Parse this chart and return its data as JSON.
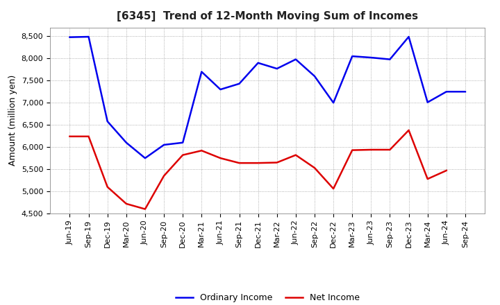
{
  "title": "[6345]  Trend of 12-Month Moving Sum of Incomes",
  "ylabel": "Amount (million yen)",
  "xlabels": [
    "Jun-19",
    "Sep-19",
    "Dec-19",
    "Mar-20",
    "Jun-20",
    "Sep-20",
    "Dec-20",
    "Mar-21",
    "Jun-21",
    "Sep-21",
    "Dec-21",
    "Mar-22",
    "Jun-22",
    "Sep-22",
    "Dec-22",
    "Mar-23",
    "Jun-23",
    "Sep-23",
    "Dec-23",
    "Mar-24",
    "Jun-24",
    "Sep-24"
  ],
  "ordinary_income": [
    8480,
    8490,
    6580,
    6100,
    5750,
    6050,
    6100,
    7700,
    7300,
    7430,
    7900,
    7770,
    7980,
    7600,
    7000,
    8050,
    8020,
    7980,
    8490,
    7010,
    7250,
    7250
  ],
  "net_income": [
    6240,
    6240,
    5100,
    4720,
    4600,
    5350,
    5820,
    5920,
    5750,
    5640,
    5640,
    5650,
    5820,
    5530,
    5060,
    5930,
    5940,
    5940,
    6380,
    5280,
    5470,
    null
  ],
  "ordinary_color": "#0000ee",
  "net_color": "#dd0000",
  "background_color": "#ffffff",
  "grid_color": "#999999",
  "ylim": [
    4500,
    8700
  ],
  "yticks": [
    4500,
    5000,
    5500,
    6000,
    6500,
    7000,
    7500,
    8000,
    8500
  ],
  "title_fontsize": 11,
  "axis_label_fontsize": 9,
  "tick_fontsize": 8,
  "legend_fontsize": 9,
  "linewidth": 1.8
}
